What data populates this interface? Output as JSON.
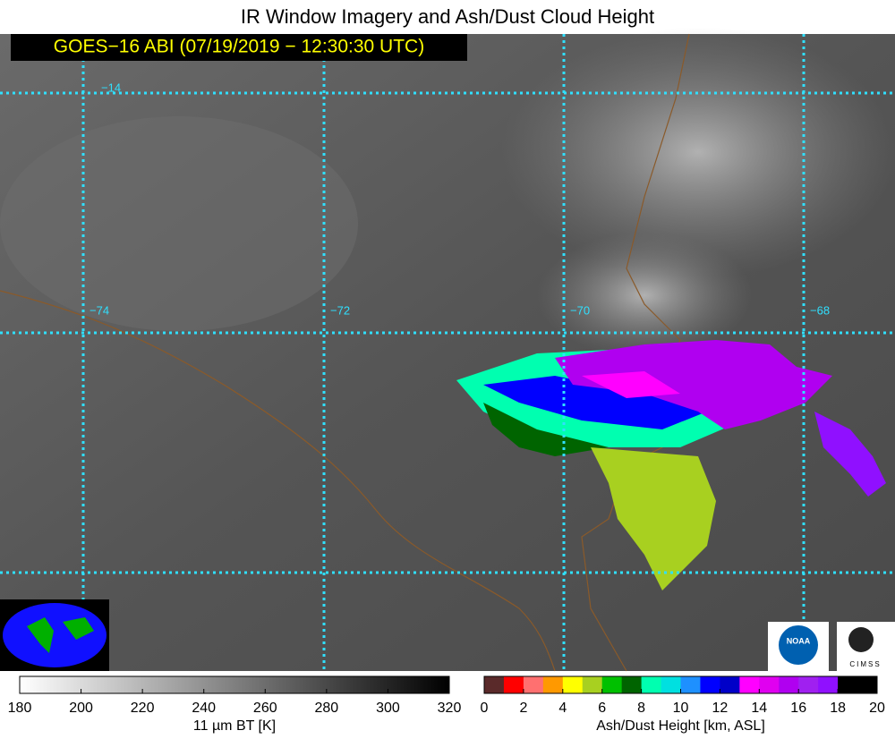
{
  "header": {
    "title": "IR Window Imagery and Ash/Dust Cloud Height",
    "timestamp": "GOES−16 ABI (07/19/2019 − 12:30:30 UTC)"
  },
  "map": {
    "latitude_labels": [
      "−14"
    ],
    "longitude_labels": [
      "−74",
      "−72",
      "−70",
      "−68"
    ]
  },
  "logos": {
    "noaa": "NOAA",
    "cimss": "CIMSS"
  },
  "colorbars": [
    {
      "label": "11 µm BT [K]",
      "range": [
        180,
        320
      ],
      "ticks": [
        180,
        200,
        220,
        240,
        260,
        280,
        300,
        320
      ],
      "colors": [
        "#ffffff",
        "#000000"
      ]
    },
    {
      "label": "Ash/Dust Height [km, ASL]",
      "range": [
        0,
        20
      ],
      "ticks": [
        0,
        2,
        4,
        6,
        8,
        10,
        12,
        14,
        16,
        18,
        20
      ],
      "colors": [
        "#5a2a2a",
        "#ff0000",
        "#ff7070",
        "#ff9900",
        "#ffff00",
        "#a8d020",
        "#00c000",
        "#006400",
        "#00ffb0",
        "#00e0e0",
        "#1e90ff",
        "#0000ff",
        "#0000c8",
        "#ff00ff",
        "#e000f0",
        "#b000f0",
        "#a020f0",
        "#9010ff",
        "#000000",
        "#000000"
      ]
    }
  ]
}
